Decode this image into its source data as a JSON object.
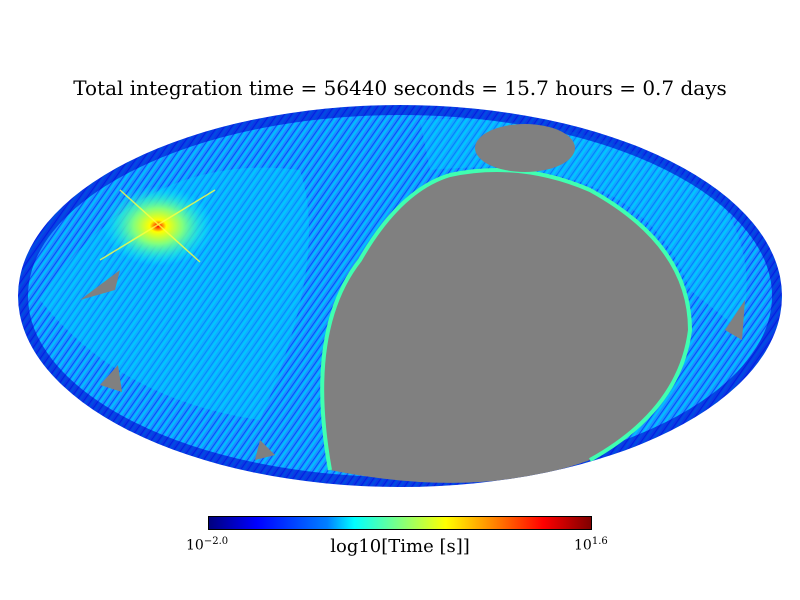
{
  "title": "Total integration time = 56440 seconds = 15.7 hours = 0.7 days",
  "colorbar": {
    "label": "log10[Time [s]]",
    "min_base": "10",
    "min_exp": "−2.0",
    "max_base": "10",
    "max_exp": "1.6"
  },
  "chart_data": {
    "type": "heatmap",
    "projection": "mollweide",
    "title": "Total integration time = 56440 seconds = 15.7 hours = 0.7 days",
    "colorbar_label": "log10[Time [s]]",
    "colorbar_range_log10": [
      -2.0,
      1.6
    ],
    "colormap": "jet",
    "masked_color": "#808080"
  }
}
